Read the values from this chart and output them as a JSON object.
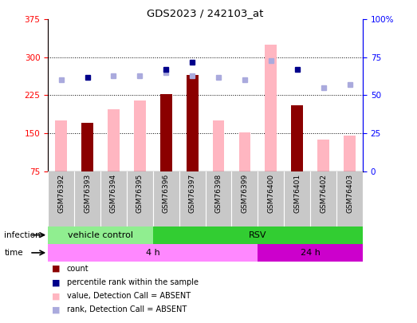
{
  "title": "GDS2023 / 242103_at",
  "samples": [
    "GSM76392",
    "GSM76393",
    "GSM76394",
    "GSM76395",
    "GSM76396",
    "GSM76397",
    "GSM76398",
    "GSM76399",
    "GSM76400",
    "GSM76401",
    "GSM76402",
    "GSM76403"
  ],
  "count_values": [
    null,
    170,
    null,
    null,
    228,
    265,
    null,
    null,
    null,
    205,
    null,
    null
  ],
  "rank_values": [
    null,
    62,
    null,
    null,
    67,
    72,
    null,
    null,
    null,
    67,
    null,
    null
  ],
  "absent_value": [
    175,
    null,
    197,
    215,
    null,
    null,
    175,
    152,
    325,
    null,
    138,
    145
  ],
  "absent_rank": [
    60,
    null,
    63,
    63,
    65,
    63,
    62,
    60,
    73,
    null,
    55,
    57
  ],
  "ylim_left": [
    75,
    375
  ],
  "ylim_right": [
    0,
    100
  ],
  "yticks_left": [
    75,
    150,
    225,
    300,
    375
  ],
  "yticks_right": [
    0,
    25,
    50,
    75,
    100
  ],
  "ytick_labels_left": [
    "75",
    "150",
    "225",
    "300",
    "375"
  ],
  "ytick_labels_right": [
    "0",
    "25",
    "50",
    "75",
    "100%"
  ],
  "infection_groups": [
    {
      "label": "vehicle control",
      "start": 0,
      "end": 4,
      "color": "#90EE90"
    },
    {
      "label": "RSV",
      "start": 4,
      "end": 12,
      "color": "#32CD32"
    }
  ],
  "time_groups": [
    {
      "label": "4 h",
      "start": 0,
      "end": 8,
      "color": "#FF88FF"
    },
    {
      "label": "24 h",
      "start": 8,
      "end": 12,
      "color": "#CC00CC"
    }
  ],
  "count_color": "#8B0000",
  "absent_bar_color": "#FFB6C1",
  "rank_color": "#00008B",
  "absent_rank_color": "#AAAADD",
  "bg_gray": "#C8C8C8",
  "plot_bg": "#FFFFFF",
  "legend_items": [
    {
      "label": "count",
      "color": "#8B0000"
    },
    {
      "label": "percentile rank within the sample",
      "color": "#00008B"
    },
    {
      "label": "value, Detection Call = ABSENT",
      "color": "#FFB6C1"
    },
    {
      "label": "rank, Detection Call = ABSENT",
      "color": "#AAAADD"
    }
  ]
}
